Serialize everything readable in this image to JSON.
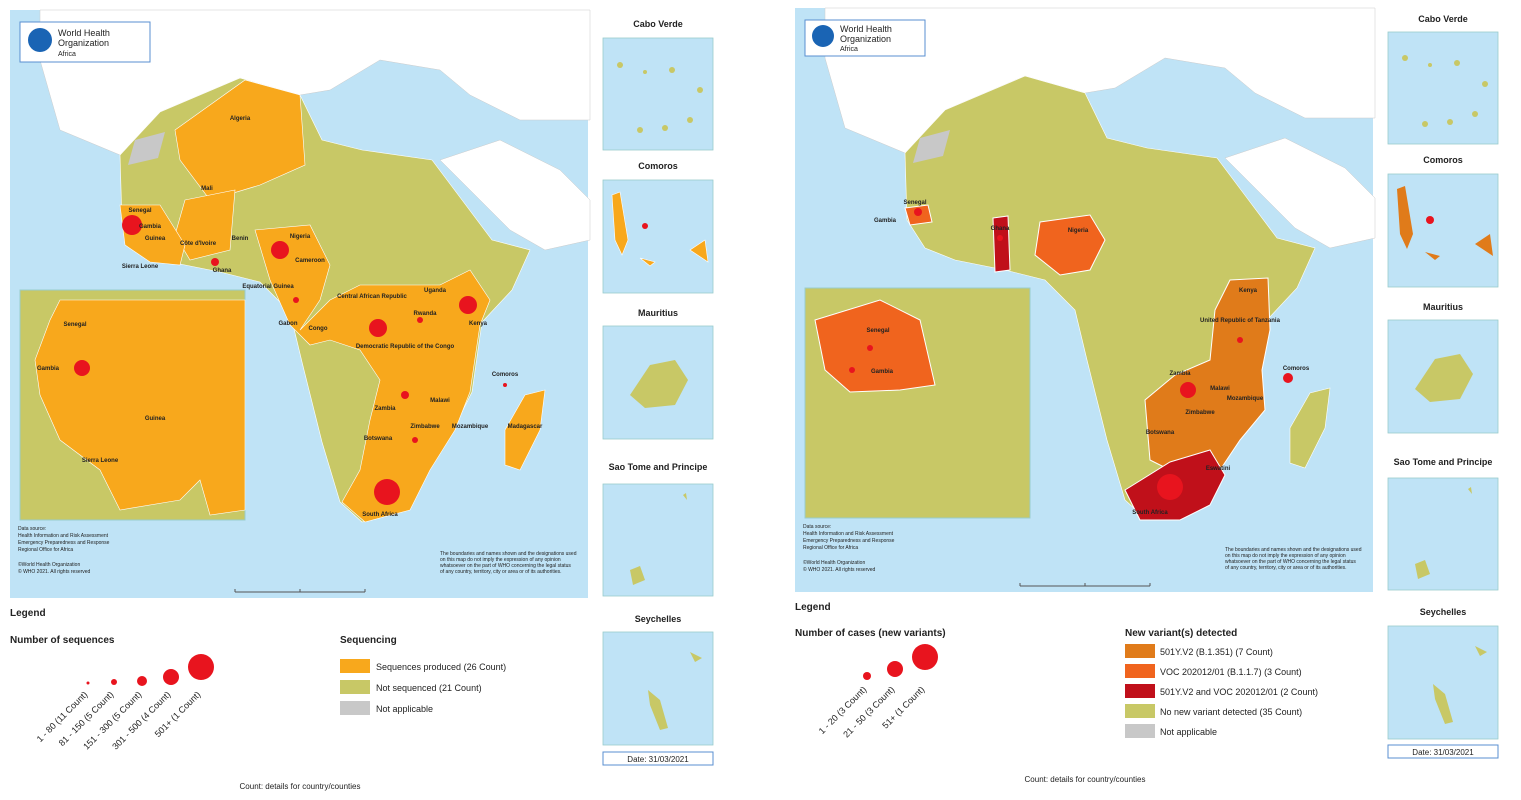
{
  "left_map": {
    "logo": [
      "World Health",
      "Organization",
      "Africa"
    ],
    "countries": [
      "Algeria",
      "Mali",
      "Senegal",
      "Gambia",
      "Guinea",
      "Sierra Leone",
      "Côte d'Ivoire",
      "Ghana",
      "Benin",
      "Nigeria",
      "Cameroon",
      "Equatorial Guinea",
      "Gabon",
      "Congo",
      "Central African Republic",
      "Uganda",
      "Kenya",
      "Rwanda",
      "Democratic Republic of the Congo",
      "Zambia",
      "Malawi",
      "Mozambique",
      "Zimbabwe",
      "Botswana",
      "South Africa",
      "Madagascar",
      "Comoros"
    ],
    "inset_countries": [
      "Senegal",
      "Gambia",
      "Guinea",
      "Sierra Leone"
    ],
    "source": [
      "Data source:",
      "Health Information and Risk Assessment",
      "Emergency Preparedness and Response",
      "Regional Office for Africa"
    ],
    "copyright": [
      "©World Health Organization",
      "© WHO 2021. All rights reserved"
    ],
    "disclaimer": [
      "The boundaries and names shown and the designations used",
      "on this map do not imply the expression of any opinion",
      "whatsoever on the part of WHO concerning the legal status",
      "of any country, territory, city or area or of its authorities."
    ],
    "insets": [
      "Cabo Verde",
      "Comoros",
      "Mauritius",
      "Sao Tome and Principe",
      "Seychelles"
    ],
    "date": "Date: 31/03/2021",
    "legend_title": "Legend",
    "bubble_title": "Number of sequences",
    "bubble_labels": [
      "1 - 80 (11 Count)",
      "81 - 150 (5 Count)",
      "151 - 300 (5 Count)",
      "301 - 500 (4 Count)",
      "501+ (1 Count)"
    ],
    "fill_title": "Sequencing",
    "fill_labels": [
      "Sequences produced (26 Count)",
      "Not sequenced (21 Count)",
      "Not applicable"
    ],
    "footer": "Count: details for country/counties"
  },
  "right_map": {
    "logo": [
      "World Health",
      "Organization",
      "Africa"
    ],
    "countries": [
      "Senegal",
      "Gambia",
      "Ghana",
      "Nigeria",
      "Kenya",
      "United Republic of Tanzania",
      "Zambia",
      "Malawi",
      "Mozambique",
      "Zimbabwe",
      "Botswana",
      "Eswatini",
      "South Africa",
      "Comoros"
    ],
    "inset_countries": [
      "Senegal",
      "Gambia"
    ],
    "source": [
      "Data source:",
      "Health Information and Risk Assessment",
      "Emergency Preparedness and Response",
      "Regional Office for Africa"
    ],
    "copyright": [
      "©World Health Organization",
      "© WHO 2021. All rights reserved"
    ],
    "disclaimer": [
      "The boundaries and names shown and the designations used",
      "on this map do not imply the expression of any opinion",
      "whatsoever on the part of WHO concerning the legal status",
      "of any country, territory, city or area or of its authorities."
    ],
    "insets": [
      "Cabo Verde",
      "Comoros",
      "Mauritius",
      "Sao Tome and Principe",
      "Seychelles"
    ],
    "date": "Date: 31/03/2021",
    "legend_title": "Legend",
    "bubble_title": "Number of cases (new variants)",
    "bubble_labels": [
      "1 - 20 (3 Count)",
      "21 - 50 (3 Count)",
      "51+ (1 Count)"
    ],
    "fill_title": "New variant(s) detected",
    "fill_labels": [
      "501Y.V2 (B.1.351) (7 Count)",
      "VOC 202012/01 (B.1.1.7) (3 Count)",
      "501Y.V2 and VOC 202012/01 (2 Count)",
      "No new variant detected (35 Count)",
      "Not applicable"
    ],
    "footer": "Count: details for country/counties"
  }
}
